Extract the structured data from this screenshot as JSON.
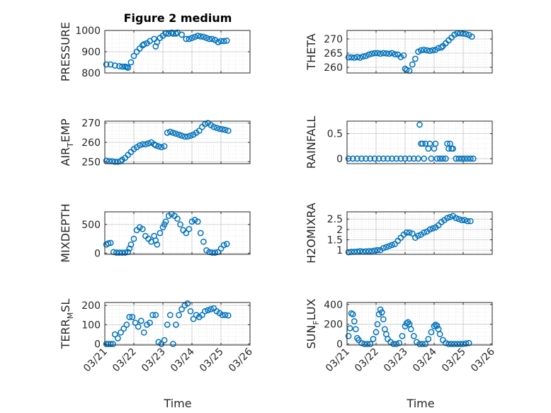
{
  "figure": {
    "title": "Figure 2 medium",
    "xlabel": "Time",
    "x_tick_labels": [
      "03/21",
      "03/22",
      "03/23",
      "03/24",
      "03/25",
      "03/26"
    ]
  },
  "colors": {
    "marker": "#0072bd",
    "axis": "#262626",
    "grid": "#c8c8c8",
    "minor_grid": "#e3e3e3"
  },
  "chart_data": [
    {
      "type": "scatter",
      "ylabel": "PRESSURE",
      "ylabel_sub": "",
      "xlim": [
        "2017-03-21",
        "2017-03-26"
      ],
      "ylim": [
        800,
        1000
      ],
      "y_ticks": [
        800,
        900,
        1000
      ],
      "y_tick_labels": [
        "800",
        "900",
        "1000"
      ],
      "grid": true,
      "show_x_tick_labels": false,
      "x": [
        0.05,
        0.2,
        0.35,
        0.5,
        0.6,
        0.7,
        0.75,
        0.8,
        0.9,
        1.0,
        1.1,
        1.2,
        1.3,
        1.35,
        1.45,
        1.55,
        1.7,
        1.75,
        1.8,
        1.9,
        2.0,
        2.1,
        2.2,
        2.3,
        2.35,
        2.45,
        2.5,
        2.65,
        2.8,
        2.9,
        3.0,
        3.1,
        3.2,
        3.3,
        3.4,
        3.5,
        3.6,
        3.7,
        3.8,
        3.9,
        4.0,
        4.1,
        4.2
      ],
      "y": [
        840,
        840,
        835,
        832,
        830,
        830,
        828,
        825,
        850,
        880,
        900,
        915,
        930,
        935,
        940,
        950,
        960,
        925,
        945,
        965,
        975,
        985,
        985,
        990,
        985,
        985,
        990,
        980,
        960,
        960,
        965,
        970,
        975,
        972,
        970,
        965,
        960,
        960,
        955,
        945,
        950,
        950,
        952
      ]
    },
    {
      "type": "scatter",
      "ylabel": "THETA",
      "ylabel_sub": "",
      "xlim": [
        "2017-03-21",
        "2017-03-26"
      ],
      "ylim": [
        258,
        273
      ],
      "y_ticks": [
        260,
        265,
        270
      ],
      "y_tick_labels": [
        "260",
        "265",
        "270"
      ],
      "grid": true,
      "show_x_tick_labels": false,
      "x": [
        0.05,
        0.15,
        0.25,
        0.35,
        0.45,
        0.55,
        0.65,
        0.75,
        0.85,
        0.95,
        1.05,
        1.15,
        1.25,
        1.35,
        1.45,
        1.55,
        1.65,
        1.75,
        1.85,
        1.95,
        2.0,
        2.05,
        2.15,
        2.25,
        2.35,
        2.45,
        2.55,
        2.65,
        2.75,
        2.85,
        2.95,
        3.05,
        3.15,
        3.25,
        3.3,
        3.4,
        3.5,
        3.6,
        3.7,
        3.8,
        3.9,
        4.0,
        4.1,
        4.2,
        4.3
      ],
      "y": [
        263.5,
        263.5,
        263.4,
        263.6,
        263.4,
        263.8,
        264.0,
        264.5,
        264.8,
        265.0,
        265.0,
        264.8,
        265.0,
        264.9,
        264.8,
        265.0,
        264.6,
        264.5,
        263.6,
        264.2,
        259.5,
        259.0,
        258.8,
        261.0,
        263.0,
        265.5,
        266.0,
        266.2,
        266.0,
        265.8,
        266.0,
        266.2,
        266.8,
        267.0,
        267.5,
        268.5,
        269.5,
        270.5,
        271.5,
        272.0,
        272.0,
        271.9,
        271.7,
        271.4,
        270.8
      ]
    },
    {
      "type": "scatter",
      "ylabel": "AIR",
      "ylabel_sub": "T",
      "ylabel_after": "EMP",
      "xlim": [
        "2017-03-21",
        "2017-03-26"
      ],
      "ylim": [
        249,
        271
      ],
      "y_ticks": [
        250,
        260,
        270
      ],
      "y_tick_labels": [
        "250",
        "260",
        "270"
      ],
      "grid": true,
      "show_x_tick_labels": false,
      "x": [
        0.05,
        0.15,
        0.25,
        0.35,
        0.45,
        0.55,
        0.6,
        0.7,
        0.8,
        0.9,
        1.0,
        1.1,
        1.2,
        1.3,
        1.4,
        1.5,
        1.6,
        1.7,
        1.75,
        1.85,
        1.95,
        2.05,
        2.15,
        2.25,
        2.35,
        2.45,
        2.55,
        2.65,
        2.75,
        2.85,
        2.95,
        3.05,
        3.15,
        3.25,
        3.35,
        3.45,
        3.55,
        3.65,
        3.75,
        3.85,
        3.95,
        4.05,
        4.15,
        4.25
      ],
      "y": [
        250.5,
        250.3,
        250.2,
        250.0,
        250.0,
        250.2,
        251.0,
        252.0,
        253.5,
        255.0,
        256.5,
        257.5,
        258.5,
        259.0,
        259.0,
        259.5,
        260.0,
        259.0,
        258.5,
        258.0,
        257.5,
        258.0,
        265.0,
        265.5,
        265.0,
        264.5,
        264.0,
        263.5,
        263.0,
        263.0,
        263.5,
        264.0,
        265.0,
        266.0,
        268.0,
        269.5,
        270.0,
        269.0,
        268.0,
        267.5,
        267.0,
        266.8,
        266.5,
        266.0
      ]
    },
    {
      "type": "scatter",
      "ylabel": "RAINFALL",
      "ylabel_sub": "",
      "xlim": [
        "2017-03-21",
        "2017-03-26"
      ],
      "ylim": [
        -0.1,
        0.75
      ],
      "y_ticks": [
        0,
        0.5
      ],
      "y_tick_labels": [
        "0",
        "0.5"
      ],
      "grid": true,
      "show_x_tick_labels": false,
      "x": [
        0.05,
        0.2,
        0.35,
        0.5,
        0.65,
        0.8,
        0.95,
        1.1,
        1.25,
        1.4,
        1.55,
        1.7,
        1.85,
        2.0,
        2.15,
        2.3,
        2.45,
        2.5,
        2.55,
        2.6,
        2.65,
        2.7,
        2.8,
        2.85,
        2.9,
        3.0,
        3.05,
        3.1,
        3.2,
        3.3,
        3.4,
        3.45,
        3.5,
        3.55,
        3.6,
        3.65,
        3.75,
        3.85,
        3.95,
        4.05,
        4.15,
        4.25,
        4.35
      ],
      "y": [
        0,
        0,
        0,
        0,
        0,
        0,
        0,
        0,
        0,
        0,
        0,
        0,
        0,
        0,
        0,
        0,
        0,
        0.68,
        0.3,
        0.3,
        0,
        0.3,
        0.2,
        0.3,
        0,
        0.2,
        0.3,
        0,
        0,
        0,
        0,
        0.3,
        0.2,
        0.3,
        0.2,
        0.2,
        0,
        0,
        0,
        0,
        0,
        0,
        0
      ]
    },
    {
      "type": "scatter",
      "ylabel": "MIXDEPTH",
      "ylabel_sub": "",
      "xlim": [
        "2017-03-21",
        "2017-03-26"
      ],
      "ylim": [
        -20,
        720
      ],
      "y_ticks": [
        0,
        500
      ],
      "y_tick_labels": [
        "0",
        "500"
      ],
      "grid": true,
      "show_x_tick_labels": false,
      "x": [
        0.05,
        0.12,
        0.2,
        0.3,
        0.4,
        0.5,
        0.6,
        0.7,
        0.8,
        0.85,
        0.9,
        1.0,
        1.1,
        1.2,
        1.3,
        1.4,
        1.5,
        1.6,
        1.7,
        1.75,
        1.8,
        1.9,
        2.0,
        2.05,
        2.1,
        2.2,
        2.3,
        2.4,
        2.5,
        2.6,
        2.7,
        2.8,
        2.9,
        3.0,
        3.1,
        3.2,
        3.3,
        3.4,
        3.5,
        3.6,
        3.7,
        3.8,
        3.9,
        4.0,
        4.1,
        4.2
      ],
      "y": [
        150,
        170,
        180,
        20,
        10,
        10,
        10,
        10,
        20,
        80,
        150,
        250,
        400,
        450,
        420,
        300,
        250,
        200,
        300,
        220,
        150,
        350,
        450,
        500,
        550,
        650,
        680,
        650,
        600,
        500,
        400,
        350,
        420,
        550,
        580,
        550,
        350,
        200,
        50,
        20,
        10,
        10,
        20,
        80,
        140,
        160
      ]
    },
    {
      "type": "scatter",
      "ylabel": "H2OMIXRA",
      "ylabel_sub": "",
      "xlim": [
        "2017-03-21",
        "2017-03-26"
      ],
      "ylim": [
        0.8,
        2.85
      ],
      "y_ticks": [
        1,
        1.5,
        2,
        2.5
      ],
      "y_tick_labels": [
        "1",
        "1.5",
        "2",
        "2.5"
      ],
      "grid": true,
      "show_x_tick_labels": false,
      "x": [
        0.05,
        0.15,
        0.25,
        0.35,
        0.45,
        0.55,
        0.65,
        0.75,
        0.85,
        0.95,
        1.05,
        1.15,
        1.25,
        1.35,
        1.45,
        1.55,
        1.65,
        1.75,
        1.85,
        1.95,
        2.05,
        2.15,
        2.25,
        2.35,
        2.45,
        2.55,
        2.65,
        2.75,
        2.85,
        2.95,
        3.05,
        3.15,
        3.25,
        3.35,
        3.45,
        3.55,
        3.65,
        3.75,
        3.85,
        3.95,
        4.05,
        4.15,
        4.25
      ],
      "y": [
        0.9,
        0.92,
        0.92,
        0.93,
        0.95,
        0.93,
        0.94,
        0.95,
        0.95,
        0.98,
        1.0,
        1.0,
        1.1,
        1.15,
        1.2,
        1.25,
        1.3,
        1.45,
        1.6,
        1.75,
        1.85,
        1.85,
        1.8,
        1.6,
        1.7,
        1.75,
        1.85,
        1.9,
        2.0,
        2.05,
        2.1,
        2.2,
        2.35,
        2.45,
        2.55,
        2.6,
        2.65,
        2.55,
        2.5,
        2.45,
        2.45,
        2.4,
        2.4
      ]
    },
    {
      "type": "scatter",
      "ylabel": "TERR",
      "ylabel_sub": "M",
      "ylabel_after": "SL",
      "xlim": [
        "2017-03-21",
        "2017-03-26"
      ],
      "ylim": [
        -5,
        215
      ],
      "y_ticks": [
        0,
        100,
        200
      ],
      "y_tick_labels": [
        "0",
        "100",
        "200"
      ],
      "grid": true,
      "show_x_tick_labels": true,
      "x": [
        0.05,
        0.12,
        0.2,
        0.28,
        0.35,
        0.45,
        0.55,
        0.65,
        0.75,
        0.85,
        0.95,
        1.05,
        1.15,
        1.25,
        1.35,
        1.45,
        1.55,
        1.65,
        1.75,
        1.85,
        1.95,
        2.05,
        2.15,
        2.25,
        2.35,
        2.45,
        2.55,
        2.65,
        2.75,
        2.85,
        2.95,
        3.05,
        3.15,
        3.25,
        3.35,
        3.45,
        3.55,
        3.65,
        3.75,
        3.85,
        3.95,
        4.05,
        4.15,
        4.25
      ],
      "y": [
        0,
        0,
        0,
        0,
        50,
        30,
        60,
        80,
        100,
        140,
        140,
        110,
        90,
        120,
        60,
        100,
        110,
        150,
        150,
        10,
        0,
        20,
        100,
        150,
        0,
        100,
        150,
        180,
        200,
        210,
        170,
        130,
        150,
        140,
        150,
        170,
        175,
        180,
        185,
        170,
        160,
        150,
        150,
        148
      ]
    },
    {
      "type": "scatter",
      "ylabel": "SUN",
      "ylabel_sub": "F",
      "ylabel_after": "LUX",
      "xlim": [
        "2017-03-21",
        "2017-03-26"
      ],
      "ylim": [
        -10,
        420
      ],
      "y_ticks": [
        0,
        200,
        400
      ],
      "y_tick_labels": [
        "0",
        "200",
        "400"
      ],
      "grid": true,
      "show_x_tick_labels": true,
      "x": [
        0.05,
        0.1,
        0.15,
        0.2,
        0.25,
        0.3,
        0.35,
        0.4,
        0.5,
        0.6,
        0.7,
        0.8,
        0.9,
        1.0,
        1.05,
        1.1,
        1.15,
        1.2,
        1.25,
        1.3,
        1.35,
        1.4,
        1.5,
        1.6,
        1.7,
        1.8,
        1.9,
        2.0,
        2.05,
        2.1,
        2.15,
        2.2,
        2.3,
        2.4,
        2.5,
        2.6,
        2.7,
        2.8,
        2.9,
        3.0,
        3.05,
        3.1,
        3.15,
        3.2,
        3.3,
        3.4,
        3.5,
        3.6,
        3.7,
        3.8,
        3.9,
        4.0,
        4.1,
        4.2
      ],
      "y": [
        80,
        160,
        310,
        300,
        230,
        150,
        60,
        40,
        10,
        0,
        0,
        0,
        50,
        120,
        200,
        300,
        350,
        320,
        250,
        150,
        100,
        50,
        20,
        0,
        0,
        10,
        80,
        180,
        210,
        220,
        200,
        150,
        80,
        20,
        0,
        0,
        0,
        50,
        120,
        180,
        195,
        185,
        150,
        100,
        40,
        10,
        0,
        0,
        0,
        0,
        0,
        0,
        5,
        10
      ]
    }
  ]
}
